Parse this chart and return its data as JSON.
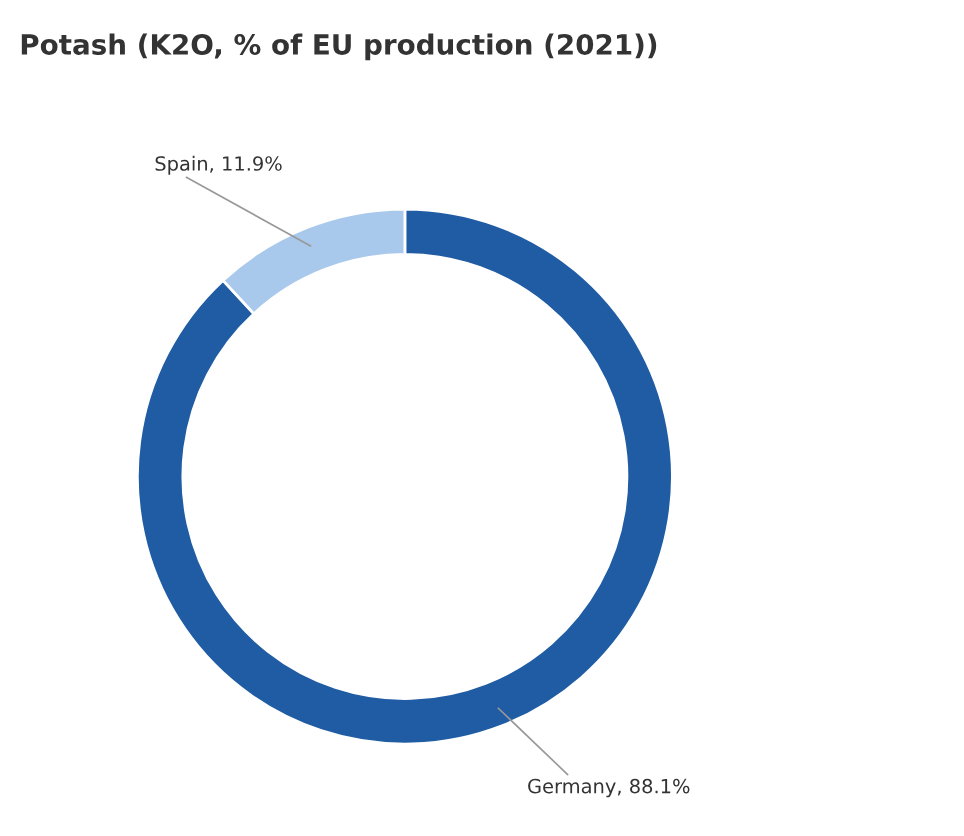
{
  "chart_data": {
    "type": "donut",
    "title": "Potash (K2O, % of EU production (2021))",
    "categories": [
      "Germany",
      "Spain"
    ],
    "values": [
      88.1,
      11.9
    ],
    "colors": [
      "#1f5ca3",
      "#a8c8ec"
    ],
    "value_labels": [
      ", 88.1%",
      ", 11.9%"
    ],
    "legend": false
  }
}
